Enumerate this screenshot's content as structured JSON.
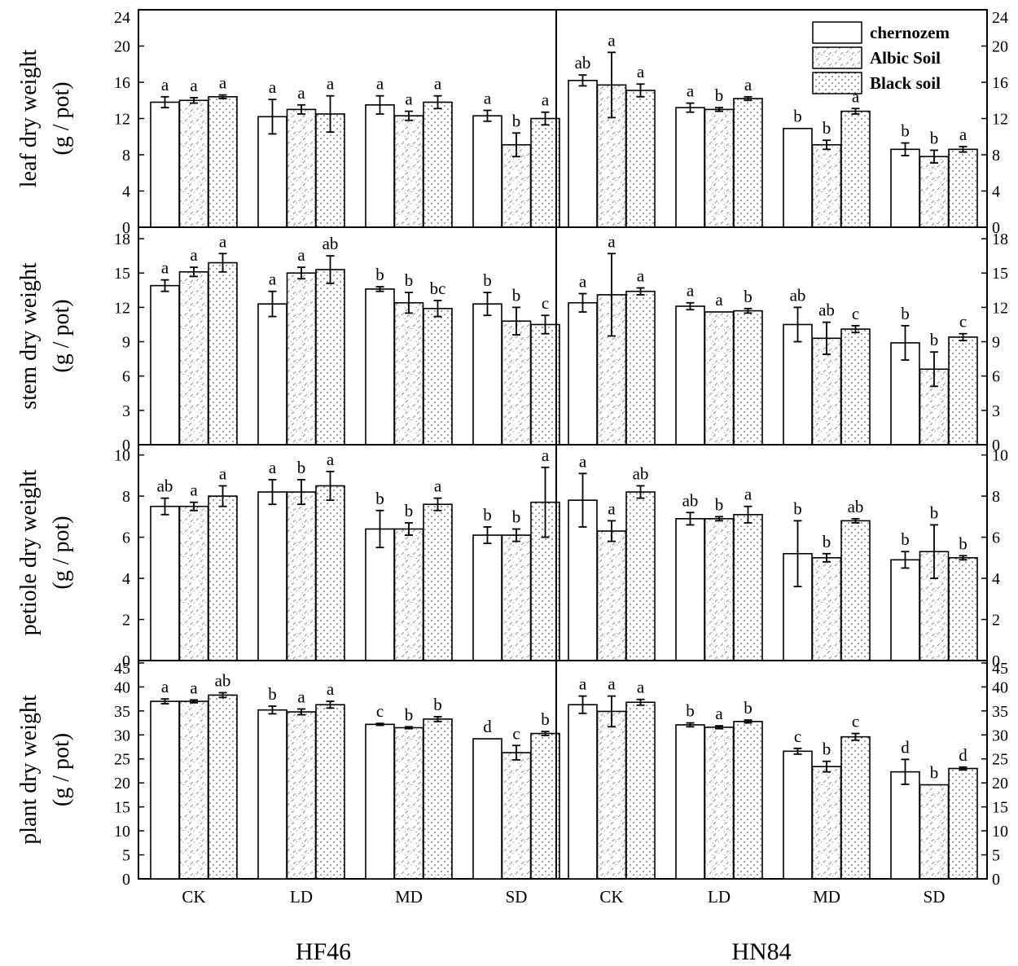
{
  "chart_data": {
    "type": "bar",
    "title": "",
    "categories": [
      "CK",
      "LD",
      "MD",
      "SD"
    ],
    "series_names": [
      "chernozem",
      "Albic Soil",
      "Black soil"
    ],
    "legend": {
      "position": "top-right",
      "entries": [
        "chernozem",
        "Albic Soil",
        "Black soil"
      ]
    },
    "cultivars": [
      "HF46",
      "HN84"
    ],
    "panels": [
      {
        "id": "leaf",
        "ylabel_line1": "leaf dry weight",
        "ylabel_line2": "(g / pot)",
        "ylim": [
          0,
          24
        ],
        "yticks": [
          0,
          4,
          8,
          12,
          16,
          20,
          24
        ],
        "data": {
          "HF46": {
            "values": [
              [
                13.8,
                14.0,
                14.4
              ],
              [
                12.2,
                13.0,
                12.5
              ],
              [
                13.5,
                12.3,
                13.8
              ],
              [
                12.3,
                9.1,
                12.0
              ]
            ],
            "errors": [
              [
                0.6,
                0.3,
                0.2
              ],
              [
                1.9,
                0.5,
                2.0
              ],
              [
                1.0,
                0.5,
                0.7
              ],
              [
                0.6,
                1.3,
                0.7
              ]
            ],
            "letters": [
              [
                "a",
                "a",
                "a"
              ],
              [
                "a",
                "a",
                "a"
              ],
              [
                "a",
                "a",
                "a"
              ],
              [
                "a",
                "b",
                "a"
              ]
            ]
          },
          "HN84": {
            "values": [
              [
                16.2,
                15.7,
                15.1
              ],
              [
                13.2,
                13.0,
                14.2
              ],
              [
                10.9,
                9.1,
                12.8
              ],
              [
                8.6,
                7.8,
                8.6
              ]
            ],
            "errors": [
              [
                0.6,
                3.6,
                0.7
              ],
              [
                0.5,
                0.2,
                0.2
              ],
              [
                0.0,
                0.5,
                0.3
              ],
              [
                0.7,
                0.7,
                0.3
              ]
            ],
            "letters": [
              [
                "ab",
                "a",
                "a"
              ],
              [
                "a",
                "b",
                "a"
              ],
              [
                "b",
                "b",
                "a"
              ],
              [
                "b",
                "b",
                "a"
              ]
            ]
          }
        }
      },
      {
        "id": "stem",
        "ylabel_line1": "stem dry weight",
        "ylabel_line2": "(g / pot)",
        "ylim": [
          0,
          19
        ],
        "yticks": [
          0,
          3,
          6,
          9,
          12,
          15,
          18
        ],
        "data": {
          "HF46": {
            "values": [
              [
                13.9,
                15.1,
                15.9
              ],
              [
                12.3,
                15.0,
                15.3
              ],
              [
                13.6,
                12.4,
                11.9
              ],
              [
                12.3,
                10.8,
                10.5
              ]
            ],
            "errors": [
              [
                0.5,
                0.4,
                0.8
              ],
              [
                1.1,
                0.5,
                1.2
              ],
              [
                0.2,
                0.9,
                0.7
              ],
              [
                1.0,
                1.2,
                0.8
              ]
            ],
            "letters": [
              [
                "a",
                "a",
                "a"
              ],
              [
                "a",
                "a",
                "ab"
              ],
              [
                "b",
                "b",
                "bc"
              ],
              [
                "b",
                "b",
                "c"
              ]
            ]
          },
          "HN84": {
            "values": [
              [
                12.4,
                13.1,
                13.4
              ],
              [
                12.1,
                11.6,
                11.7
              ],
              [
                10.5,
                9.3,
                10.1
              ],
              [
                8.9,
                6.6,
                9.4
              ]
            ],
            "errors": [
              [
                0.8,
                3.6,
                0.3
              ],
              [
                0.3,
                0.0,
                0.2
              ],
              [
                1.5,
                1.4,
                0.3
              ],
              [
                1.5,
                1.5,
                0.3
              ]
            ],
            "letters": [
              [
                "a",
                "a",
                "a"
              ],
              [
                "a",
                "a",
                "b"
              ],
              [
                "ab",
                "ab",
                "c"
              ],
              [
                "b",
                "b",
                "c"
              ]
            ]
          }
        }
      },
      {
        "id": "petiole",
        "ylabel_line1": "petiole dry weight",
        "ylabel_line2": "(g / pot)",
        "ylim": [
          0,
          10.5
        ],
        "yticks": [
          0,
          2,
          4,
          6,
          8,
          10
        ],
        "data": {
          "HF46": {
            "values": [
              [
                7.5,
                7.5,
                8.0
              ],
              [
                8.2,
                8.2,
                8.5
              ],
              [
                6.4,
                6.4,
                7.6
              ],
              [
                6.1,
                6.1,
                7.7
              ]
            ],
            "errors": [
              [
                0.4,
                0.2,
                0.5
              ],
              [
                0.6,
                0.6,
                0.7
              ],
              [
                0.9,
                0.3,
                0.3
              ],
              [
                0.4,
                0.3,
                1.7
              ]
            ],
            "letters": [
              [
                "ab",
                "a",
                "a"
              ],
              [
                "a",
                "b",
                "a"
              ],
              [
                "b",
                "b",
                "a"
              ],
              [
                "b",
                "b",
                "a"
              ]
            ]
          },
          "HN84": {
            "values": [
              [
                7.8,
                6.3,
                8.2
              ],
              [
                6.9,
                6.9,
                7.1
              ],
              [
                5.2,
                5.0,
                6.8
              ],
              [
                4.9,
                5.3,
                5.0
              ]
            ],
            "errors": [
              [
                1.3,
                0.5,
                0.3
              ],
              [
                0.3,
                0.1,
                0.4
              ],
              [
                1.6,
                0.2,
                0.1
              ],
              [
                0.4,
                1.3,
                0.1
              ]
            ],
            "letters": [
              [
                "a",
                "a",
                "ab"
              ],
              [
                "ab",
                "b",
                "a"
              ],
              [
                "b",
                "b",
                "ab"
              ],
              [
                "b",
                "b",
                "b"
              ]
            ]
          }
        }
      },
      {
        "id": "plant",
        "ylabel_line1": "plant dry weight",
        "ylabel_line2": "(g / pot)",
        "ylim": [
          0,
          45.5
        ],
        "yticks": [
          0,
          5,
          10,
          15,
          20,
          25,
          30,
          35,
          40,
          45
        ],
        "data": {
          "HF46": {
            "values": [
              [
                37.0,
                37.0,
                38.3
              ],
              [
                35.2,
                34.8,
                36.3
              ],
              [
                32.2,
                31.5,
                33.3
              ],
              [
                29.2,
                26.3,
                30.3
              ]
            ],
            "errors": [
              [
                0.5,
                0.3,
                0.5
              ],
              [
                0.8,
                0.6,
                0.7
              ],
              [
                0.2,
                0.2,
                0.5
              ],
              [
                0.0,
                1.5,
                0.4
              ]
            ],
            "letters": [
              [
                "a",
                "a",
                "ab"
              ],
              [
                "b",
                "a",
                "a"
              ],
              [
                "c",
                "b",
                "b"
              ],
              [
                "d",
                "c",
                "b"
              ]
            ]
          },
          "HN84": {
            "values": [
              [
                36.3,
                34.9,
                36.8
              ],
              [
                32.1,
                31.6,
                32.8
              ],
              [
                26.6,
                23.4,
                29.6
              ],
              [
                22.3,
                19.6,
                23.0
              ]
            ],
            "errors": [
              [
                1.8,
                3.2,
                0.6
              ],
              [
                0.4,
                0.3,
                0.3
              ],
              [
                0.6,
                1.1,
                0.7
              ],
              [
                2.6,
                0.0,
                0.3
              ]
            ],
            "letters": [
              [
                "a",
                "a",
                "a"
              ],
              [
                "b",
                "a",
                "b"
              ],
              [
                "c",
                "b",
                "c"
              ],
              [
                "d",
                "b",
                "d"
              ]
            ]
          }
        }
      }
    ]
  }
}
